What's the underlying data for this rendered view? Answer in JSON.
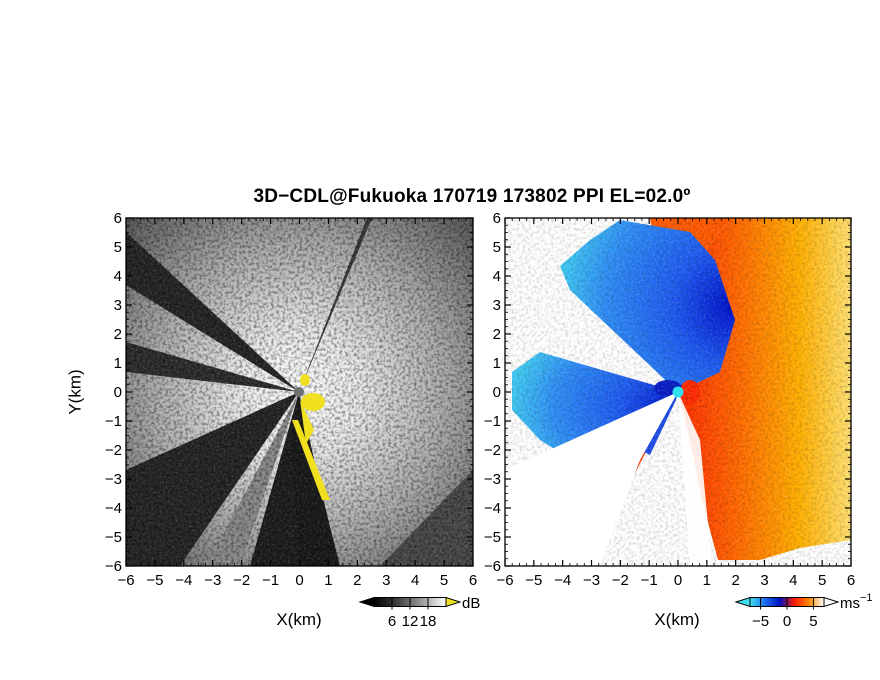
{
  "title": "3D−CDL@Fukuoka 170719 173802 PPI EL=02.0º",
  "chart_data": [
    {
      "type": "heatmap",
      "quantity": "SNR",
      "xlabel": "X(km)",
      "ylabel": "Y(km)",
      "xlim": [
        -6,
        6
      ],
      "ylim": [
        -6,
        6
      ],
      "xticks": [
        "−6",
        "−5",
        "−4",
        "−3",
        "−2",
        "−1",
        "0",
        "1",
        "2",
        "3",
        "4",
        "5",
        "6"
      ],
      "yticks": [
        "−6",
        "−5",
        "−4",
        "−3",
        "−2",
        "−1",
        "0",
        "1",
        "2",
        "3",
        "4",
        "5",
        "6"
      ],
      "colorbar": {
        "unit": "dB",
        "ticks": [
          "6",
          "12",
          "18"
        ],
        "tick_values": [
          6,
          12,
          18
        ],
        "range": [
          0,
          24
        ],
        "colors": [
          "#000000",
          "#ffffff"
        ],
        "over_color": "#f0e020"
      },
      "radar_marker": {
        "x": 0,
        "y": 0,
        "color": "#707070"
      }
    },
    {
      "type": "heatmap",
      "quantity": "Doppler velocity",
      "xlabel": "X(km)",
      "xlim": [
        -6,
        6
      ],
      "ylim": [
        -6,
        6
      ],
      "xticks": [
        "−6",
        "−5",
        "−4",
        "−3",
        "−2",
        "−1",
        "0",
        "1",
        "2",
        "3",
        "4",
        "5",
        "6"
      ],
      "yticks": [
        "−6",
        "−5",
        "−4",
        "−3",
        "−2",
        "−1",
        "0",
        "1",
        "2",
        "3",
        "4",
        "5",
        "6"
      ],
      "colorbar": {
        "unit": "ms",
        "unit_exponent": "−1",
        "ticks": [
          "−5",
          "0",
          "5"
        ],
        "tick_values": [
          -5,
          0,
          5
        ],
        "range": [
          -7,
          7
        ],
        "colors": [
          "#40e0f0",
          "#1e6ef0",
          "#0010c0",
          "#ff1a00",
          "#ff8a00",
          "#ffffff"
        ],
        "under_color": "#40e0f0",
        "over_color": "#ffffff"
      },
      "radar_marker": {
        "x": 0,
        "y": 0,
        "color": "#2fe0f0"
      }
    }
  ]
}
